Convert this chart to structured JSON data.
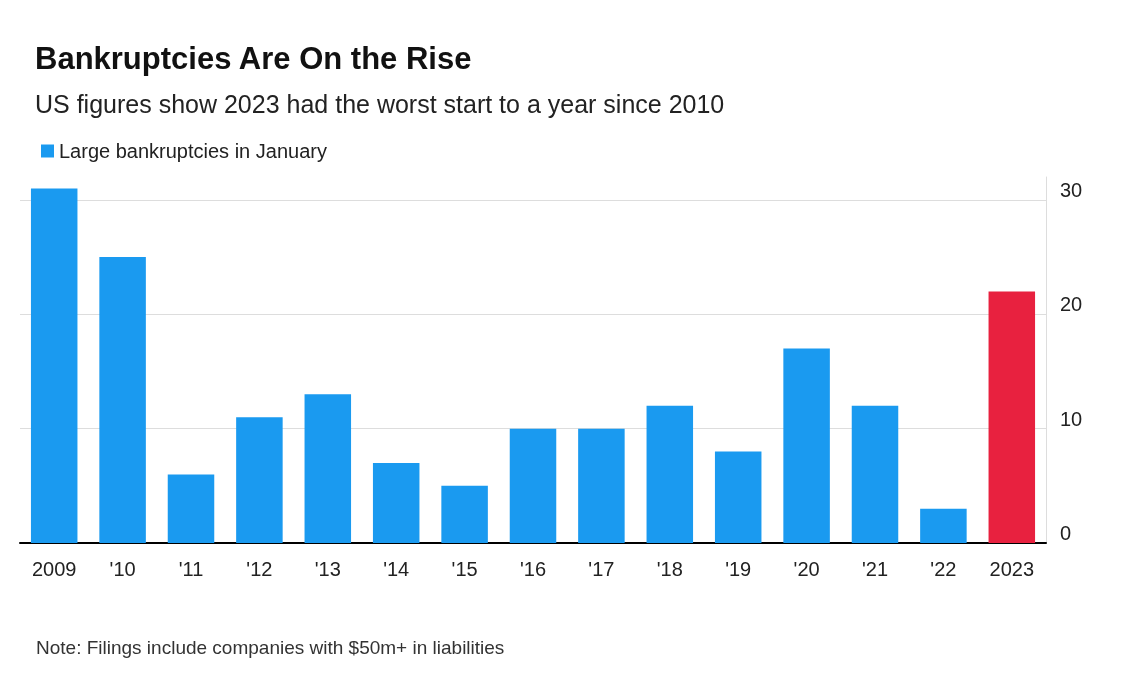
{
  "chart_data": {
    "type": "bar",
    "title": "Bankruptcies Are On the Rise",
    "subtitle": "US figures show 2023 had the worst start to a year since 2010",
    "categories": [
      "2009",
      "'10",
      "'11",
      "'12",
      "'13",
      "'14",
      "'15",
      "'16",
      "'17",
      "'18",
      "'19",
      "'20",
      "'21",
      "'22",
      "2023"
    ],
    "series": [
      {
        "name": "Large bankruptcies in January",
        "color": "#1a9af0",
        "colors": [
          "#1a9af0",
          "#1a9af0",
          "#1a9af0",
          "#1a9af0",
          "#1a9af0",
          "#1a9af0",
          "#1a9af0",
          "#1a9af0",
          "#1a9af0",
          "#1a9af0",
          "#1a9af0",
          "#1a9af0",
          "#1a9af0",
          "#1a9af0",
          "#e8213f"
        ],
        "values": [
          31,
          25,
          6,
          11,
          13,
          7,
          5,
          10,
          10,
          12,
          8,
          17,
          12,
          3,
          22
        ]
      }
    ],
    "ylim": [
      0,
      32
    ],
    "yticks": [
      0,
      10,
      20,
      30
    ],
    "grid": "y",
    "legend": "top left",
    "annotations": [
      "Note: Filings include companies with $50m+ in liabilities"
    ]
  }
}
